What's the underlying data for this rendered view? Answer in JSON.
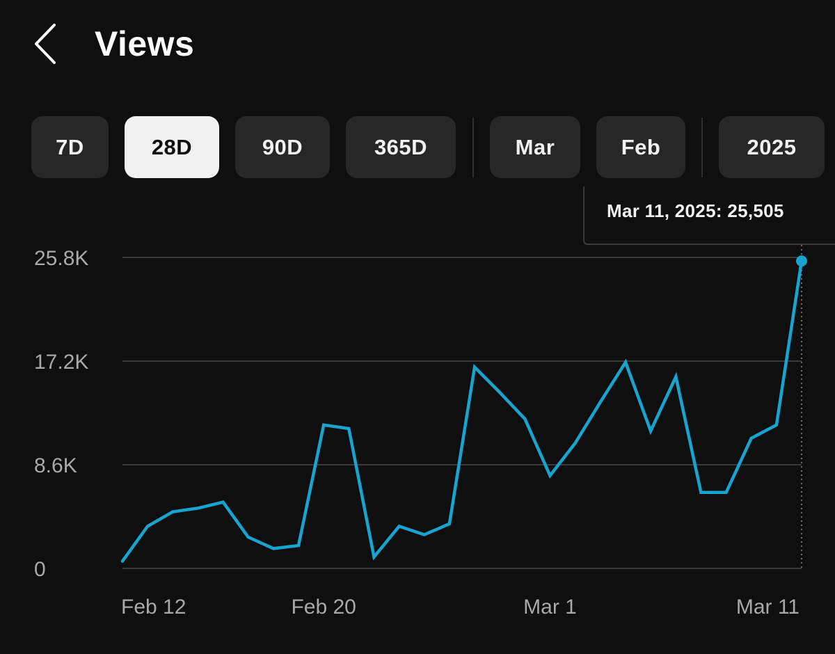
{
  "header": {
    "title": "Views",
    "back_icon": "chevron-left-icon"
  },
  "filters": {
    "chips": [
      {
        "label": "7D",
        "active": false
      },
      {
        "label": "28D",
        "active": true
      },
      {
        "label": "90D",
        "active": false
      },
      {
        "label": "365D",
        "active": false
      },
      {
        "label": "Mar",
        "active": false
      },
      {
        "label": "Feb",
        "active": false
      },
      {
        "label": "2025",
        "active": false
      }
    ]
  },
  "tooltip": {
    "text": "Mar 11, 2025: 25,505"
  },
  "colors": {
    "background": "#0f0f0f",
    "line": "#17a4cf",
    "grid": "#3a3a3a",
    "chip_bg": "#272727",
    "chip_active_bg": "#f1f1f1",
    "axis_text": "#a9a9a9"
  },
  "chart_data": {
    "type": "line",
    "title": "",
    "xlabel": "",
    "ylabel": "",
    "x": [
      "Feb 12",
      "Feb 13",
      "Feb 14",
      "Feb 15",
      "Feb 16",
      "Feb 17",
      "Feb 18",
      "Feb 19",
      "Feb 20",
      "Feb 21",
      "Feb 22",
      "Feb 23",
      "Feb 24",
      "Feb 25",
      "Feb 26",
      "Feb 27",
      "Feb 28",
      "Mar 1",
      "Mar 2",
      "Mar 3",
      "Mar 4",
      "Mar 5",
      "Mar 6",
      "Mar 7",
      "Mar 8",
      "Mar 9",
      "Mar 10",
      "Mar 11"
    ],
    "series": [
      {
        "values": [
          600,
          3500,
          4700,
          5000,
          5500,
          2600,
          1650,
          1900,
          11900,
          11600,
          950,
          3500,
          2800,
          3700,
          16700,
          14600,
          12400,
          7700,
          10400,
          13800,
          17100,
          11400,
          15900,
          6300,
          6300,
          10800,
          11900,
          25505
        ]
      }
    ],
    "yticks": [
      {
        "value": 0,
        "label": "0"
      },
      {
        "value": 8600,
        "label": "8.6K"
      },
      {
        "value": 17200,
        "label": "17.2K"
      },
      {
        "value": 25800,
        "label": "25.8K"
      }
    ],
    "xticks": [
      {
        "index": 0,
        "label": "Feb 12"
      },
      {
        "index": 8,
        "label": "Feb 20"
      },
      {
        "index": 17,
        "label": "Mar 1"
      },
      {
        "index": 27,
        "label": "Mar 11"
      }
    ],
    "ylim": [
      0,
      25800
    ],
    "grid": true,
    "legend": "none",
    "highlight": {
      "index": 27,
      "value": 25505
    }
  }
}
